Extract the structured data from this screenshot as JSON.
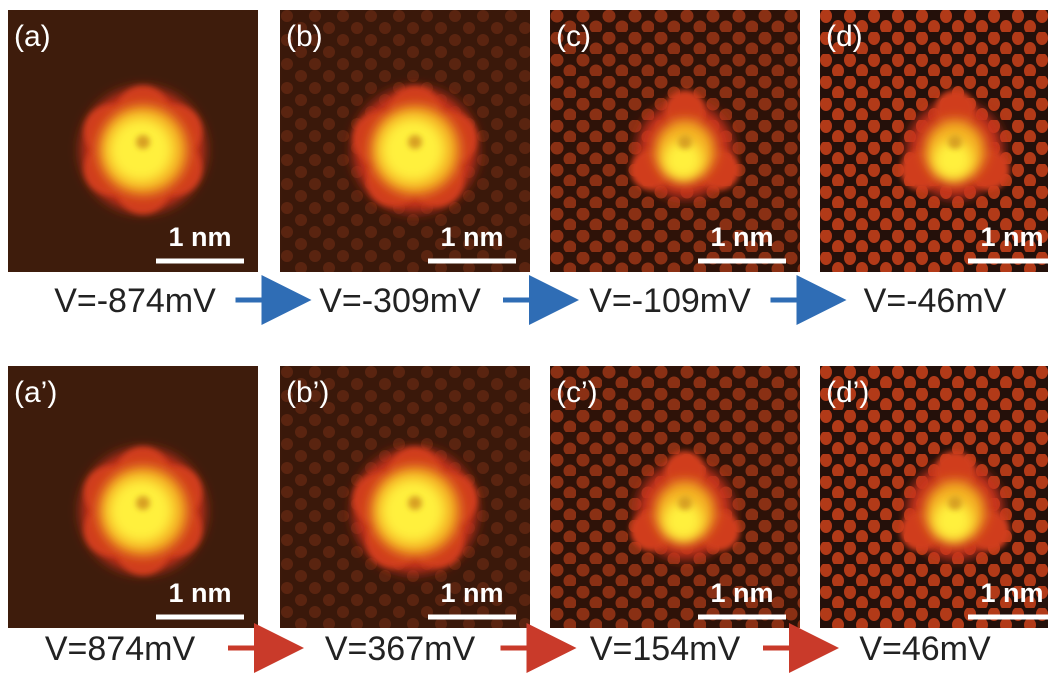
{
  "rows": [
    {
      "panels": [
        {
          "label": "(a)",
          "scale_bar": "1 nm"
        },
        {
          "label": "(b)",
          "scale_bar": "1 nm"
        },
        {
          "label": "(c)",
          "scale_bar": "1 nm"
        },
        {
          "label": "(d)",
          "scale_bar": "1 nm"
        }
      ],
      "voltages": [
        "V=-874mV",
        "V=-309mV",
        "V=-109mV",
        "V=-46mV"
      ]
    },
    {
      "panels": [
        {
          "label": "(a’)",
          "scale_bar": "1 nm"
        },
        {
          "label": "(b’)",
          "scale_bar": "1 nm"
        },
        {
          "label": "(c’)",
          "scale_bar": "1 nm"
        },
        {
          "label": "(d’)",
          "scale_bar": "1 nm"
        }
      ],
      "voltages": [
        "V=874mV",
        "V=367mV",
        "V=154mV",
        "V=46mV"
      ]
    }
  ]
}
